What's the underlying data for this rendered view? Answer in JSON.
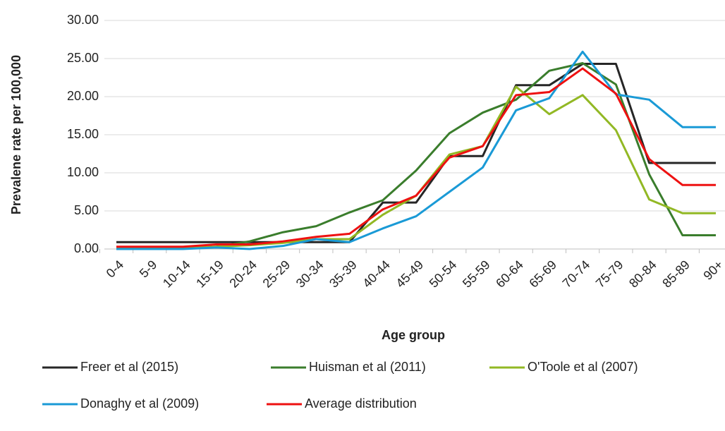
{
  "chart_data": {
    "type": "line",
    "x_label": "Age group",
    "y_label": "Prevalene rate per 100,000",
    "categories": [
      "0-4",
      "5-9",
      "10-14",
      "15-19",
      "20-24",
      "25-29",
      "30-34",
      "35-39",
      "40-44",
      "45-49",
      "50-54",
      "55-59",
      "60-64",
      "65-69",
      "70-74",
      "75-79",
      "80-84",
      "85-89",
      "90+"
    ],
    "series": [
      {
        "name": "Freer et al (2015)",
        "color": "#262626",
        "values": [
          0.9,
          0.9,
          0.9,
          0.9,
          0.9,
          0.9,
          0.9,
          0.9,
          6.1,
          6.1,
          12.2,
          12.2,
          21.5,
          21.5,
          24.3,
          24.3,
          11.3,
          11.3,
          11.3
        ]
      },
      {
        "name": "Huisman et al (2011)",
        "color": "#3a7d2c",
        "values": [
          0.1,
          0.1,
          0.1,
          0.3,
          1.0,
          2.2,
          3.0,
          4.8,
          6.4,
          10.3,
          15.2,
          17.9,
          19.6,
          23.4,
          24.4,
          21.6,
          9.8,
          1.8,
          1.8
        ]
      },
      {
        "name": "O'Toole et al (2007)",
        "color": "#92b824",
        "values": [
          0.1,
          0.1,
          0.1,
          0.3,
          0.5,
          0.8,
          1.3,
          1.3,
          4.5,
          7.0,
          12.4,
          13.5,
          21.3,
          17.7,
          20.2,
          15.6,
          6.5,
          4.7,
          4.7
        ]
      },
      {
        "name": "Donaghy et al (2009)",
        "color": "#1a9ad6",
        "values": [
          0,
          0,
          0,
          0.2,
          0,
          0.4,
          1.3,
          0.9,
          2.7,
          4.3,
          7.5,
          10.7,
          18.2,
          19.8,
          25.9,
          20.3,
          19.6,
          16.0,
          16.0
        ]
      },
      {
        "name": "Average distribution",
        "color": "#ee1111",
        "values": [
          0.3,
          0.3,
          0.3,
          0.6,
          0.6,
          1.0,
          1.6,
          2.0,
          5.2,
          7.0,
          12.0,
          13.5,
          20.2,
          20.6,
          23.7,
          20.4,
          11.8,
          8.4,
          8.4
        ]
      }
    ],
    "ylim": [
      0,
      30
    ],
    "yticks": [
      {
        "value": 0,
        "label": "0.00"
      },
      {
        "value": 5,
        "label": "5.00"
      },
      {
        "value": 10,
        "label": "10.00"
      },
      {
        "value": 15,
        "label": "15.00"
      },
      {
        "value": 20,
        "label": "20.00"
      },
      {
        "value": 25,
        "label": "25.00"
      },
      {
        "value": 30,
        "label": "30.00"
      }
    ],
    "grid": true,
    "legend": "bottom"
  }
}
